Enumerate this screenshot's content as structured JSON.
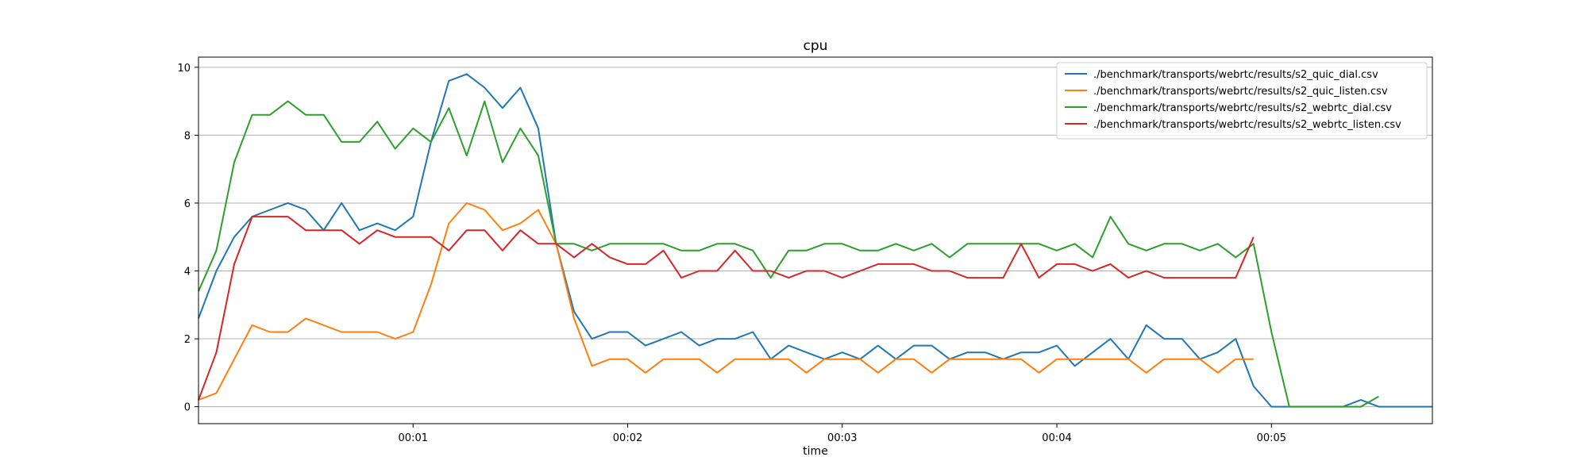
{
  "chart_data": {
    "type": "line",
    "title": "cpu",
    "xlabel": "time",
    "ylabel": "",
    "ylim": [
      -0.5,
      10.3
    ],
    "yticks": [
      0,
      2,
      4,
      6,
      8,
      10
    ],
    "xlim_seconds": [
      0,
      345
    ],
    "xticks": [
      {
        "label": "00:01",
        "seconds": 60
      },
      {
        "label": "00:02",
        "seconds": 120
      },
      {
        "label": "00:03",
        "seconds": 180
      },
      {
        "label": "00:04",
        "seconds": 240
      },
      {
        "label": "00:05",
        "seconds": 300
      }
    ],
    "grid": "horizontal",
    "legend_position": "top-right",
    "colors": {
      "frame": "#000000",
      "grid": "#b0b0b0"
    },
    "series": [
      {
        "name": "./benchmark/transports/webrtc/results/s2_quic_dial.csv",
        "color": "#1f77b4",
        "x_seconds": [
          0,
          5,
          10,
          15,
          20,
          25,
          30,
          35,
          40,
          45,
          50,
          55,
          60,
          65,
          70,
          75,
          80,
          85,
          90,
          95,
          100,
          105,
          110,
          115,
          120,
          125,
          130,
          135,
          140,
          145,
          150,
          155,
          160,
          165,
          170,
          175,
          180,
          185,
          190,
          195,
          200,
          205,
          210,
          215,
          220,
          225,
          230,
          235,
          240,
          245,
          250,
          255,
          260,
          265,
          270,
          275,
          280,
          285,
          290,
          295,
          300,
          305,
          310,
          315,
          320,
          325,
          330,
          335,
          340,
          345
        ],
        "values": [
          2.6,
          4.0,
          5.0,
          5.6,
          5.8,
          6.0,
          5.8,
          5.2,
          6.0,
          5.2,
          5.4,
          5.2,
          5.6,
          7.8,
          9.6,
          9.8,
          9.4,
          8.8,
          9.4,
          8.2,
          4.8,
          2.8,
          2.0,
          2.2,
          2.2,
          1.8,
          2.0,
          2.2,
          1.8,
          2.0,
          2.0,
          2.2,
          1.4,
          1.8,
          1.6,
          1.4,
          1.6,
          1.4,
          1.8,
          1.4,
          1.8,
          1.8,
          1.4,
          1.6,
          1.6,
          1.4,
          1.6,
          1.6,
          1.8,
          1.2,
          1.6,
          2.0,
          1.4,
          2.4,
          2.0,
          2.0,
          1.4,
          1.6,
          2.0,
          0.6,
          0.0,
          0.0,
          0.0,
          0.0,
          0.0,
          0.2,
          0.0,
          0.0,
          0.0,
          0.0
        ]
      },
      {
        "name": "./benchmark/transports/webrtc/results/s2_quic_listen.csv",
        "color": "#ff7f0e",
        "x_seconds": [
          0,
          5,
          10,
          15,
          20,
          25,
          30,
          35,
          40,
          45,
          50,
          55,
          60,
          65,
          70,
          75,
          80,
          85,
          90,
          95,
          100,
          105,
          110,
          115,
          120,
          125,
          130,
          135,
          140,
          145,
          150,
          155,
          160,
          165,
          170,
          175,
          180,
          185,
          190,
          195,
          200,
          205,
          210,
          215,
          220,
          225,
          230,
          235,
          240,
          245,
          250,
          255,
          260,
          265,
          270,
          275,
          280,
          285,
          290,
          295
        ],
        "values": [
          0.2,
          0.4,
          1.4,
          2.4,
          2.2,
          2.2,
          2.6,
          2.4,
          2.2,
          2.2,
          2.2,
          2.0,
          2.2,
          3.6,
          5.4,
          6.0,
          5.8,
          5.2,
          5.4,
          5.8,
          4.8,
          2.6,
          1.2,
          1.4,
          1.4,
          1.0,
          1.4,
          1.4,
          1.4,
          1.0,
          1.4,
          1.4,
          1.4,
          1.4,
          1.0,
          1.4,
          1.4,
          1.4,
          1.0,
          1.4,
          1.4,
          1.0,
          1.4,
          1.4,
          1.4,
          1.4,
          1.4,
          1.0,
          1.4,
          1.4,
          1.4,
          1.4,
          1.4,
          1.0,
          1.4,
          1.4,
          1.4,
          1.0,
          1.4,
          1.4
        ]
      },
      {
        "name": "./benchmark/transports/webrtc/results/s2_webrtc_dial.csv",
        "color": "#2ca02c",
        "x_seconds": [
          0,
          5,
          10,
          15,
          20,
          25,
          30,
          35,
          40,
          45,
          50,
          55,
          60,
          65,
          70,
          75,
          80,
          85,
          90,
          95,
          100,
          105,
          110,
          115,
          120,
          125,
          130,
          135,
          140,
          145,
          150,
          155,
          160,
          165,
          170,
          175,
          180,
          185,
          190,
          195,
          200,
          205,
          210,
          215,
          220,
          225,
          230,
          235,
          240,
          245,
          250,
          255,
          260,
          265,
          270,
          275,
          280,
          285,
          290,
          295,
          300,
          305,
          310,
          315,
          320,
          325,
          330
        ],
        "values": [
          3.4,
          4.6,
          7.2,
          8.6,
          8.6,
          9.0,
          8.6,
          8.6,
          7.8,
          7.8,
          8.4,
          7.6,
          8.2,
          7.8,
          8.8,
          7.4,
          9.0,
          7.2,
          8.2,
          7.4,
          4.8,
          4.8,
          4.6,
          4.8,
          4.8,
          4.8,
          4.8,
          4.6,
          4.6,
          4.8,
          4.8,
          4.6,
          3.8,
          4.6,
          4.6,
          4.8,
          4.8,
          4.6,
          4.6,
          4.8,
          4.6,
          4.8,
          4.4,
          4.8,
          4.8,
          4.8,
          4.8,
          4.8,
          4.6,
          4.8,
          4.4,
          5.6,
          4.8,
          4.6,
          4.8,
          4.8,
          4.6,
          4.8,
          4.4,
          4.8,
          2.2,
          0.0,
          0.0,
          0.0,
          0.0,
          0.0,
          0.3
        ]
      },
      {
        "name": "./benchmark/transports/webrtc/results/s2_webrtc_listen.csv",
        "color": "#d62728",
        "x_seconds": [
          0,
          5,
          10,
          15,
          20,
          25,
          30,
          35,
          40,
          45,
          50,
          55,
          60,
          65,
          70,
          75,
          80,
          85,
          90,
          95,
          100,
          105,
          110,
          115,
          120,
          125,
          130,
          135,
          140,
          145,
          150,
          155,
          160,
          165,
          170,
          175,
          180,
          185,
          190,
          195,
          200,
          205,
          210,
          215,
          220,
          225,
          230,
          235,
          240,
          245,
          250,
          255,
          260,
          265,
          270,
          275,
          280,
          285,
          290,
          295
        ],
        "values": [
          0.2,
          1.6,
          4.2,
          5.6,
          5.6,
          5.6,
          5.2,
          5.2,
          5.2,
          4.8,
          5.2,
          5.0,
          5.0,
          5.0,
          4.6,
          5.2,
          5.2,
          4.6,
          5.2,
          4.8,
          4.8,
          4.4,
          4.8,
          4.4,
          4.2,
          4.2,
          4.6,
          3.8,
          4.0,
          4.0,
          4.6,
          4.0,
          4.0,
          3.8,
          4.0,
          4.0,
          3.8,
          4.0,
          4.2,
          4.2,
          4.2,
          4.0,
          4.0,
          3.8,
          3.8,
          3.8,
          4.8,
          3.8,
          4.2,
          4.2,
          4.0,
          4.2,
          3.8,
          4.0,
          3.8,
          3.8,
          3.8,
          3.8,
          3.8,
          5.0
        ]
      }
    ]
  }
}
